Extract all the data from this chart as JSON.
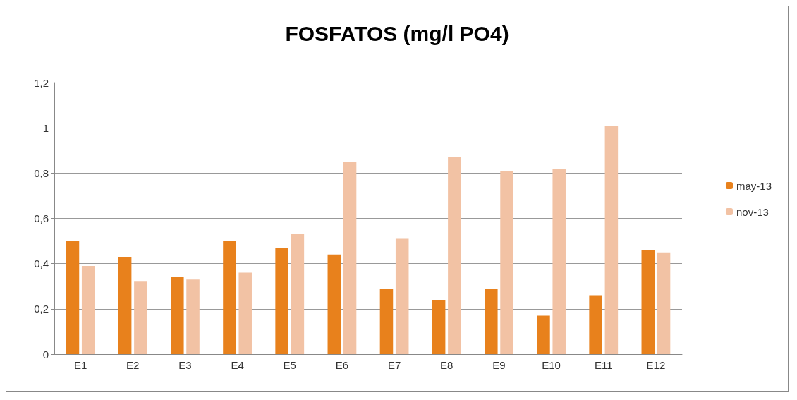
{
  "chart_data": {
    "type": "bar",
    "title": "FOSFATOS (mg/l PO4)",
    "categories": [
      "E1",
      "E2",
      "E3",
      "E4",
      "E5",
      "E6",
      "E7",
      "E8",
      "E9",
      "E10",
      "E11",
      "E12"
    ],
    "series": [
      {
        "name": "may-13",
        "color": "#e8811c",
        "values": [
          0.5,
          0.43,
          0.34,
          0.5,
          0.47,
          0.44,
          0.29,
          0.24,
          0.29,
          0.17,
          0.26,
          0.46
        ]
      },
      {
        "name": "nov-13",
        "color": "#f2c2a4",
        "values": [
          0.39,
          0.32,
          0.33,
          0.36,
          0.53,
          0.85,
          0.51,
          0.87,
          0.81,
          0.82,
          1.01,
          0.45
        ]
      }
    ],
    "ylim": [
      0,
      1.2
    ],
    "yticks": [
      0,
      {
        "value": 0.2,
        "label": "0,2"
      },
      {
        "value": 0.4,
        "label": "0,4"
      },
      {
        "value": 0.6,
        "label": "0,6"
      },
      {
        "value": 0.8,
        "label": "0,8"
      },
      1,
      {
        "value": 1.2,
        "label": "1,2"
      }
    ],
    "grid": "y",
    "legend": "right"
  }
}
